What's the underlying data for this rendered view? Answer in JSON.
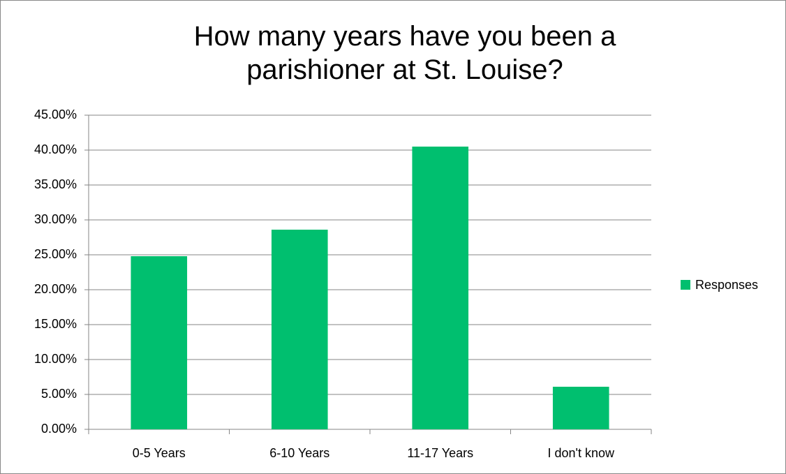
{
  "chart_data": {
    "type": "bar",
    "title": "How many years have you been a parishioner at St. Louise?",
    "categories": [
      "0-5 Years",
      "6-10 Years",
      "11-17 Years",
      "I don't know"
    ],
    "series": [
      {
        "name": "Responses",
        "color": "#00bf6f",
        "values": [
          24.8,
          28.6,
          40.5,
          6.1
        ]
      }
    ],
    "ylim": [
      0,
      45
    ],
    "yticks": [
      {
        "value": 0,
        "label": "0.00%"
      },
      {
        "value": 5,
        "label": "5.00%"
      },
      {
        "value": 10,
        "label": "10.00%"
      },
      {
        "value": 15,
        "label": "15.00%"
      },
      {
        "value": 20,
        "label": "20.00%"
      },
      {
        "value": 25,
        "label": "25.00%"
      },
      {
        "value": 30,
        "label": "30.00%"
      },
      {
        "value": 35,
        "label": "35.00%"
      },
      {
        "value": 40,
        "label": "40.00%"
      },
      {
        "value": 45,
        "label": "45.00%"
      }
    ],
    "grid": true,
    "legend": "right"
  }
}
